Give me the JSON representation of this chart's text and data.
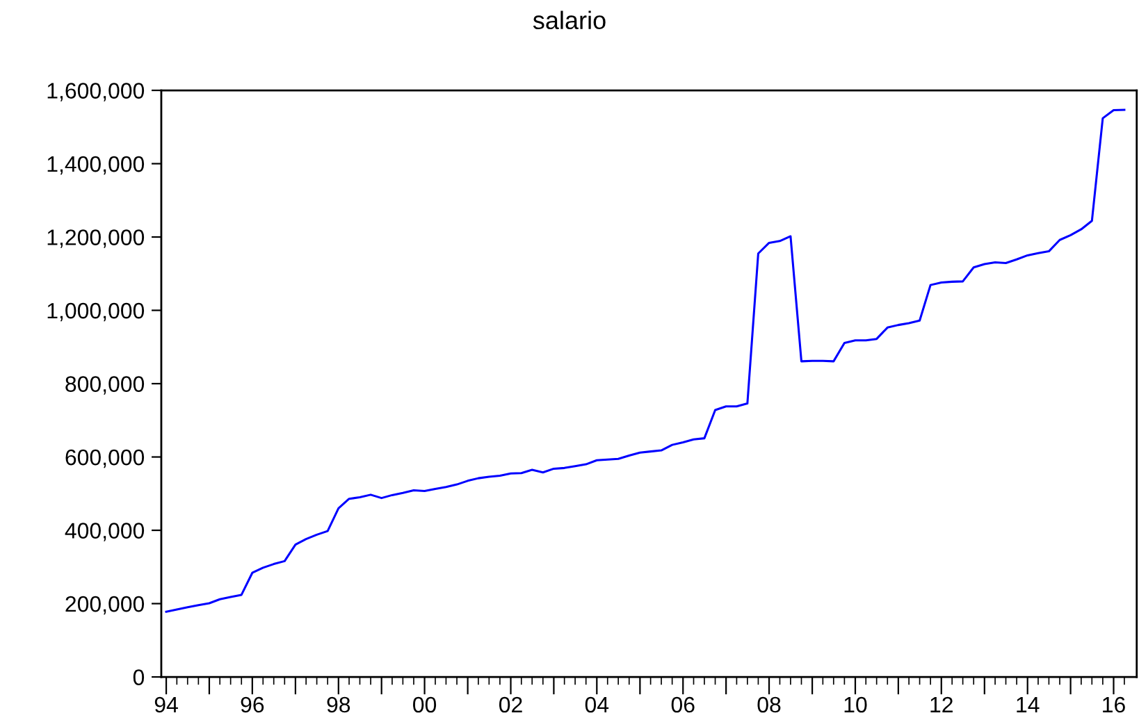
{
  "chart_data": {
    "type": "line",
    "title": "salario",
    "x": [
      "1994-01",
      "1994-04",
      "1994-07",
      "1994-10",
      "1995-01",
      "1995-04",
      "1995-07",
      "1995-10",
      "1996-01",
      "1996-04",
      "1996-07",
      "1996-10",
      "1997-01",
      "1997-04",
      "1997-07",
      "1997-10",
      "1998-01",
      "1998-04",
      "1998-07",
      "1998-10",
      "1999-01",
      "1999-04",
      "1999-07",
      "1999-10",
      "2000-01",
      "2000-04",
      "2000-07",
      "2000-10",
      "2001-01",
      "2001-04",
      "2001-07",
      "2001-10",
      "2002-01",
      "2002-04",
      "2002-07",
      "2002-10",
      "2003-01",
      "2003-04",
      "2003-07",
      "2003-10",
      "2004-01",
      "2004-04",
      "2004-07",
      "2004-10",
      "2005-01",
      "2005-04",
      "2005-07",
      "2005-10",
      "2006-01",
      "2006-04",
      "2006-07",
      "2006-10",
      "2007-01",
      "2007-04",
      "2007-07",
      "2007-10",
      "2008-01",
      "2008-04",
      "2008-07",
      "2008-10",
      "2009-01",
      "2009-04",
      "2009-07",
      "2009-10",
      "2010-01",
      "2010-04",
      "2010-07",
      "2010-10",
      "2011-01",
      "2011-04",
      "2011-07",
      "2011-10",
      "2012-01",
      "2012-04",
      "2012-07",
      "2012-10",
      "2013-01",
      "2013-04",
      "2013-07",
      "2013-10",
      "2014-01",
      "2014-04",
      "2014-07",
      "2014-10",
      "2015-01",
      "2015-04",
      "2015-07",
      "2015-10",
      "2016-01",
      "2016-04"
    ],
    "series": [
      {
        "color": "#0000ff",
        "values": [
          178000,
          184000,
          190000,
          196000,
          201000,
          212000,
          218000,
          224000,
          284000,
          298000,
          308000,
          316000,
          361000,
          376000,
          388000,
          398000,
          460000,
          486000,
          490000,
          497000,
          488000,
          496000,
          502000,
          509000,
          507000,
          513000,
          518000,
          525000,
          535000,
          542000,
          546000,
          549000,
          555000,
          556000,
          565000,
          558000,
          568000,
          570000,
          575000,
          580000,
          591000,
          593000,
          595000,
          604000,
          612000,
          615000,
          618000,
          633000,
          640000,
          648000,
          651000,
          728000,
          738000,
          738000,
          746000,
          1155000,
          1184000,
          1189000,
          1202000,
          861000,
          862000,
          862000,
          861000,
          911000,
          918000,
          918000,
          922000,
          953000,
          960000,
          965000,
          972000,
          1069000,
          1076000,
          1078000,
          1079000,
          1117000,
          1126000,
          1131000,
          1129000,
          1139000,
          1150000,
          1156000,
          1161000,
          1192000,
          1205000,
          1221000,
          1244000,
          1524000,
          1546000,
          1547000
        ]
      }
    ],
    "xlim": [
      "1993-11-20",
      "2016-07-15"
    ],
    "xticks": [
      {
        "value": "1994-01",
        "label": "94"
      },
      {
        "value": "1995-01",
        "label": null
      },
      {
        "value": "1996-01",
        "label": "96"
      },
      {
        "value": "1997-01",
        "label": null
      },
      {
        "value": "1998-01",
        "label": "98"
      },
      {
        "value": "1999-01",
        "label": null
      },
      {
        "value": "2000-01",
        "label": "00"
      },
      {
        "value": "2001-01",
        "label": null
      },
      {
        "value": "2002-01",
        "label": "02"
      },
      {
        "value": "2003-01",
        "label": null
      },
      {
        "value": "2004-01",
        "label": "04"
      },
      {
        "value": "2005-01",
        "label": null
      },
      {
        "value": "2006-01",
        "label": "06"
      },
      {
        "value": "2007-01",
        "label": null
      },
      {
        "value": "2008-01",
        "label": "08"
      },
      {
        "value": "2009-01",
        "label": null
      },
      {
        "value": "2010-01",
        "label": "10"
      },
      {
        "value": "2011-01",
        "label": null
      },
      {
        "value": "2012-01",
        "label": "12"
      },
      {
        "value": "2013-01",
        "label": null
      },
      {
        "value": "2014-01",
        "label": "14"
      },
      {
        "value": "2015-01",
        "label": null
      },
      {
        "value": "2016-01",
        "label": "16"
      }
    ],
    "ylim": [
      0,
      1600000
    ],
    "yticks": [
      {
        "value": 0,
        "label": "0"
      },
      {
        "value": 200000,
        "label": "200,000"
      },
      {
        "value": 400000,
        "label": "400,000"
      },
      {
        "value": 600000,
        "label": "600,000"
      },
      {
        "value": 800000,
        "label": "800,000"
      },
      {
        "value": 1000000,
        "label": "1,000,000"
      },
      {
        "value": 1200000,
        "label": "1,200,000"
      },
      {
        "value": 1400000,
        "label": "1,400,000"
      },
      {
        "value": 1600000,
        "label": "1,600,000"
      }
    ],
    "grid": false,
    "marker": "none",
    "line_style": "solid"
  }
}
